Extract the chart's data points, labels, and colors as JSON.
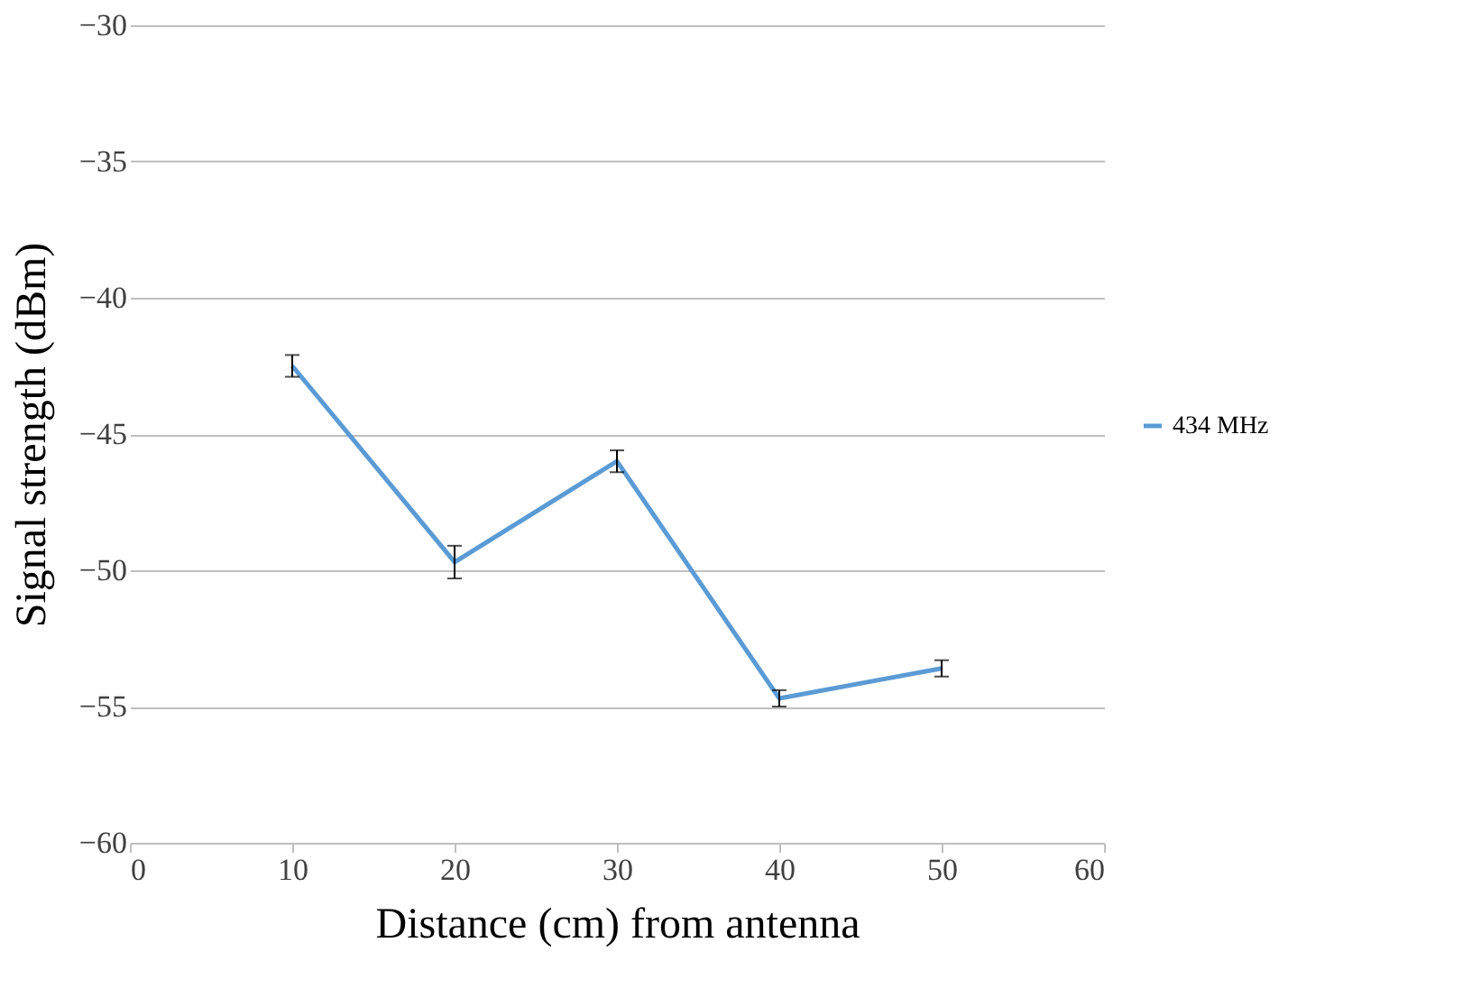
{
  "chart_data": {
    "type": "line",
    "xlabel": "Distance (cm) from antenna",
    "ylabel": "Signal strength (dBm)",
    "x": [
      10,
      20,
      30,
      40,
      50
    ],
    "series": [
      {
        "name": "434 MHz",
        "color": "#5b9bd5",
        "values": [
          -42.5,
          -49.7,
          -46.0,
          -54.7,
          -53.6
        ],
        "errors": [
          0.4,
          0.6,
          0.4,
          0.3,
          0.3
        ]
      }
    ],
    "xlim": [
      0,
      60
    ],
    "xticks": [
      0,
      10,
      20,
      30,
      40,
      50,
      60
    ],
    "ylim": [
      -60,
      -30
    ],
    "yticks": [
      -60,
      -55,
      -50,
      -45,
      -40,
      -35,
      -30
    ],
    "grid": "y",
    "legend": "right",
    "marker": "none",
    "line_style": "solid"
  }
}
